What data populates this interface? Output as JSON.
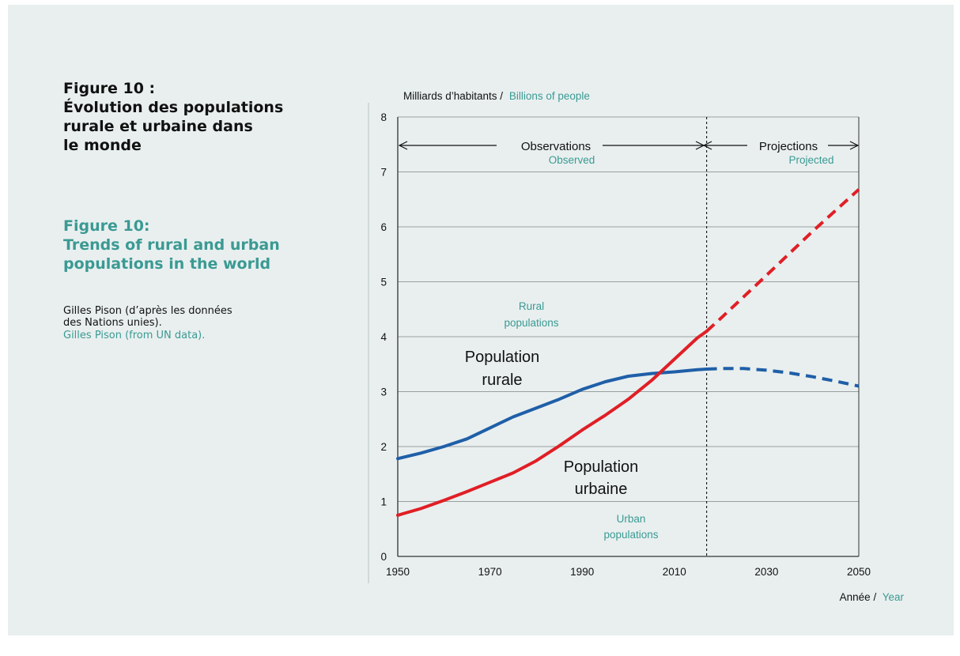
{
  "captions": {
    "fr_title_lines": [
      "Figure 10 :",
      "Évolution des populations",
      "rurale et urbaine dans",
      "le monde"
    ],
    "en_title_lines": [
      "Figure 10:",
      "Trends of rural and urban",
      "populations in the world"
    ],
    "source_fr_lines": [
      "Gilles Pison (d’après les données",
      "des Nations unies)."
    ],
    "source_en": "Gilles Pison (from UN data)."
  },
  "colors": {
    "rural": "#1f5fa8",
    "urban": "#e01f26",
    "teal_text": "#3a9a93",
    "background": "#e9efef"
  },
  "chart_data": {
    "type": "line",
    "ylabel_fr": "Milliards d’habitants /",
    "ylabel_en": "Billions of people",
    "xlabel_fr": "Année /",
    "xlabel_en": "Year",
    "xlim": [
      1950,
      2050
    ],
    "ylim": [
      0,
      8
    ],
    "x_ticks": [
      1950,
      1970,
      1990,
      2010,
      2030,
      2050
    ],
    "y_ticks": [
      0,
      1,
      2,
      3,
      4,
      5,
      6,
      7,
      8
    ],
    "grid": "horizontal",
    "divider_year": 2017,
    "periods": {
      "observed_fr": "Observations",
      "observed_en": "Observed",
      "projected_fr": "Projections",
      "projected_en": "Projected"
    },
    "annotations": {
      "rural_en_lines": [
        "Rural",
        "populations"
      ],
      "rural_fr_lines": [
        "Population",
        "rurale"
      ],
      "urban_fr_lines": [
        "Population",
        "urbaine"
      ],
      "urban_en_lines": [
        "Urban",
        "populations"
      ]
    },
    "series": [
      {
        "id": "rural",
        "x": [
          1950,
          1955,
          1960,
          1965,
          1970,
          1975,
          1980,
          1985,
          1990,
          1995,
          2000,
          2005,
          2010,
          2015,
          2017,
          2020,
          2025,
          2030,
          2035,
          2040,
          2045,
          2050
        ],
        "values": [
          1.78,
          1.88,
          2.0,
          2.14,
          2.34,
          2.54,
          2.7,
          2.86,
          3.04,
          3.18,
          3.28,
          3.33,
          3.36,
          3.4,
          3.41,
          3.42,
          3.42,
          3.39,
          3.34,
          3.27,
          3.19,
          3.1
        ]
      },
      {
        "id": "urban",
        "x": [
          1950,
          1955,
          1960,
          1965,
          1970,
          1975,
          1980,
          1985,
          1990,
          1995,
          2000,
          2005,
          2010,
          2015,
          2017,
          2020,
          2030,
          2040,
          2050
        ],
        "values": [
          0.75,
          0.87,
          1.02,
          1.18,
          1.35,
          1.52,
          1.74,
          2.01,
          2.3,
          2.57,
          2.86,
          3.2,
          3.59,
          3.98,
          4.1,
          4.33,
          5.12,
          5.92,
          6.68
        ]
      }
    ]
  }
}
